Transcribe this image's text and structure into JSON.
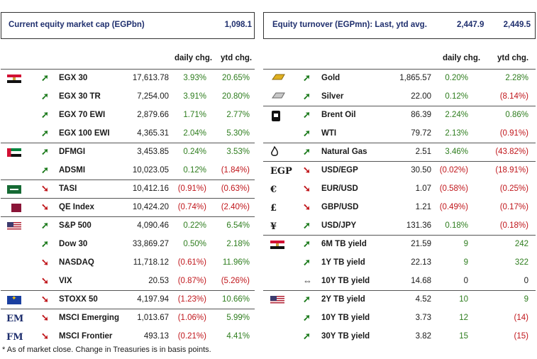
{
  "left": {
    "title": "Current equity market cap (EGPbn)",
    "title_value": "1,098.1",
    "col_daily": "daily chg.",
    "col_ytd": "ytd chg.",
    "rows": [
      {
        "name": "EGX 30",
        "value": "17,613.78",
        "daily": "3.93%",
        "ytd": "20.65%",
        "dir": "up",
        "flag": "egypt-flag"
      },
      {
        "name": "EGX 30 TR",
        "value": "7,254.00",
        "daily": "3.91%",
        "ytd": "20.80%",
        "dir": "up"
      },
      {
        "name": "EGX 70 EWI",
        "value": "2,879.66",
        "daily": "1.71%",
        "ytd": "2.77%",
        "dir": "up"
      },
      {
        "name": "EGX 100 EWI",
        "value": "4,365.31",
        "daily": "2.04%",
        "ytd": "5.30%",
        "dir": "up"
      },
      {
        "name": "DFMGI",
        "value": "3,453.85",
        "daily": "0.24%",
        "ytd": "3.53%",
        "dir": "up",
        "flag": "uae-flag"
      },
      {
        "name": "ADSMI",
        "value": "10,023.05",
        "daily": "0.12%",
        "ytd": "(1.84%)",
        "dir": "up"
      },
      {
        "name": "TASI",
        "value": "10,412.16",
        "daily": "(0.91%)",
        "ytd": "(0.63%)",
        "dir": "down",
        "flag": "saudi-flag"
      },
      {
        "name": "QE Index",
        "value": "10,424.20",
        "daily": "(0.74%)",
        "ytd": "(2.40%)",
        "dir": "down",
        "flag": "qatar-flag"
      },
      {
        "name": "S&P 500",
        "value": "4,090.46",
        "daily": "0.22%",
        "ytd": "6.54%",
        "dir": "up",
        "flag": "us-flag"
      },
      {
        "name": "Dow 30",
        "value": "33,869.27",
        "daily": "0.50%",
        "ytd": "2.18%",
        "dir": "up"
      },
      {
        "name": "NASDAQ",
        "value": "11,718.12",
        "daily": "(0.61%)",
        "ytd": "11.96%",
        "dir": "down"
      },
      {
        "name": "VIX",
        "value": "20.53",
        "daily": "(0.87%)",
        "ytd": "(5.26%)",
        "dir": "down"
      },
      {
        "name": "STOXX 50",
        "value": "4,197.94",
        "daily": "(1.23%)",
        "ytd": "10.66%",
        "dir": "down",
        "flag": "eu-flag"
      },
      {
        "name": "MSCI Emerging",
        "value": "1,013.67",
        "daily": "(1.06%)",
        "ytd": "5.99%",
        "dir": "down",
        "code": "EM"
      },
      {
        "name": "MSCI Frontier",
        "value": "493.13",
        "daily": "(0.21%)",
        "ytd": "4.41%",
        "dir": "down",
        "code": "FM"
      }
    ]
  },
  "right": {
    "title": "Equity turnover (EGPmn): Last, ytd avg.",
    "title_last": "2,447.9",
    "title_avg": "2,449.5",
    "col_daily": "daily chg.",
    "col_ytd": "ytd chg.",
    "rows": [
      {
        "name": "Gold",
        "value": "1,865.57",
        "daily": "0.20%",
        "ytd": "2.28%",
        "dir": "up",
        "icon": "gold-bar-icon"
      },
      {
        "name": "Silver",
        "value": "22.00",
        "daily": "0.12%",
        "ytd": "(8.14%)",
        "dir": "up",
        "icon": "silver-bar-icon"
      },
      {
        "name": "Brent Oil",
        "value": "86.39",
        "daily": "2.24%",
        "ytd": "0.86%",
        "dir": "up",
        "icon": "oil-barrel-icon"
      },
      {
        "name": "WTI",
        "value": "79.72",
        "daily": "2.13%",
        "ytd": "(0.91%)",
        "dir": "up"
      },
      {
        "name": "Natural Gas",
        "value": "2.51",
        "daily": "3.46%",
        "ytd": "(43.82%)",
        "dir": "up",
        "icon": "flame-icon"
      },
      {
        "name": "USD/EGP",
        "value": "30.50",
        "daily": "(0.02%)",
        "ytd": "(18.91%)",
        "dir": "down",
        "symbol": "EGP"
      },
      {
        "name": "EUR/USD",
        "value": "1.07",
        "daily": "(0.58%)",
        "ytd": "(0.25%)",
        "dir": "down",
        "symbol": "€"
      },
      {
        "name": "GBP/USD",
        "value": "1.21",
        "daily": "(0.49%)",
        "ytd": "(0.17%)",
        "dir": "down",
        "symbol": "£"
      },
      {
        "name": "USD/JPY",
        "value": "131.36",
        "daily": "0.18%",
        "ytd": "(0.18%)",
        "dir": "up",
        "symbol": "¥"
      },
      {
        "name": "6M TB yield",
        "value": "21.59",
        "daily": "9",
        "ytd": "242",
        "dir": "up",
        "flag": "egypt-flag"
      },
      {
        "name": "1Y TB yield",
        "value": "22.13",
        "daily": "9",
        "ytd": "322",
        "dir": "up"
      },
      {
        "name": "10Y TB yield",
        "value": "14.68",
        "daily": "0",
        "ytd": "0",
        "dir": "flat"
      },
      {
        "name": "2Y TB yield",
        "value": "4.52",
        "daily": "10",
        "ytd": "9",
        "dir": "up",
        "flag": "us-flag"
      },
      {
        "name": "10Y TB yield",
        "value": "3.73",
        "daily": "12",
        "ytd": "(14)",
        "dir": "up"
      },
      {
        "name": "30Y TB yield",
        "value": "3.82",
        "daily": "15",
        "ytd": "(15)",
        "dir": "up"
      }
    ]
  },
  "footnote": "* As of market close. Change in Treasuries is in basis points.",
  "colors": {
    "positive": "#2e7d1e",
    "negative": "#c0161b",
    "title": "#1f2f6e"
  }
}
